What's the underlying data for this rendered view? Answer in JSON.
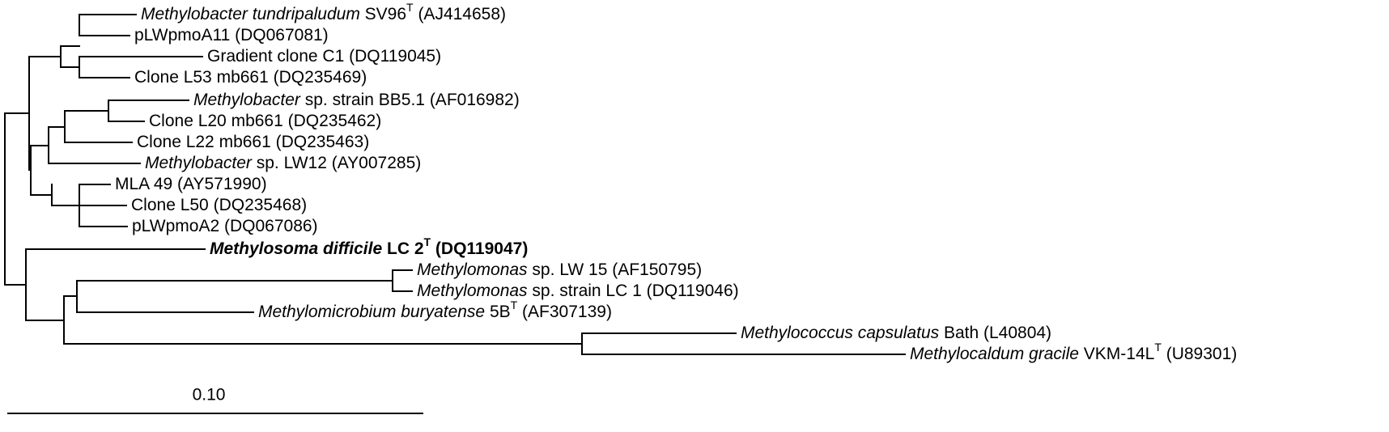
{
  "tree": {
    "leaves": [
      {
        "id": "t1",
        "parts": [
          {
            "t": "Methylobacter tundripaludum",
            "s": "i"
          },
          {
            "t": " SV96"
          },
          {
            "t": "T",
            "s": "sup"
          },
          {
            "t": " (AJ414658)"
          }
        ]
      },
      {
        "id": "t2",
        "parts": [
          {
            "t": "pLWpmoA11 (DQ067081)"
          }
        ]
      },
      {
        "id": "t3",
        "parts": [
          {
            "t": "Gradient clone C1 (DQ119045)"
          }
        ]
      },
      {
        "id": "t4",
        "parts": [
          {
            "t": "Clone L53 mb661 (DQ235469)"
          }
        ]
      },
      {
        "id": "t5",
        "parts": [
          {
            "t": "Methylobacter",
            "s": "i"
          },
          {
            "t": " sp. strain BB5.1 (AF016982)"
          }
        ]
      },
      {
        "id": "t6",
        "parts": [
          {
            "t": "Clone L20 mb661 (DQ235462)"
          }
        ]
      },
      {
        "id": "t7",
        "parts": [
          {
            "t": "Clone L22 mb661 (DQ235463)"
          }
        ]
      },
      {
        "id": "t8",
        "parts": [
          {
            "t": "Methylobacter",
            "s": "i"
          },
          {
            "t": " sp. LW12 (AY007285)"
          }
        ]
      },
      {
        "id": "t9",
        "parts": [
          {
            "t": "MLA 49  (AY571990)"
          }
        ]
      },
      {
        "id": "t10",
        "parts": [
          {
            "t": "Clone L50 (DQ235468)"
          }
        ]
      },
      {
        "id": "t11",
        "parts": [
          {
            "t": "pLWpmoA2 (DQ067086)"
          }
        ]
      },
      {
        "id": "t12",
        "parts": [
          {
            "t": "Methylosoma difficile",
            "s": "bi"
          },
          {
            "t": "  LC 2",
            "s": "b"
          },
          {
            "t": "T",
            "s": "bsup"
          },
          {
            "t": " (DQ119047)",
            "s": "b"
          }
        ]
      },
      {
        "id": "t13",
        "parts": [
          {
            "t": "Methylomonas",
            "s": "i"
          },
          {
            "t": " sp. LW 15 (AF150795)"
          }
        ]
      },
      {
        "id": "t14",
        "parts": [
          {
            "t": "Methylomonas",
            "s": "i"
          },
          {
            "t": " sp. strain LC 1 (DQ119046)"
          }
        ]
      },
      {
        "id": "t15",
        "parts": [
          {
            "t": "Methylomicrobium buryatense",
            "s": "i"
          },
          {
            "t": " 5B"
          },
          {
            "t": "T",
            "s": "sup"
          },
          {
            "t": " (AF307139)"
          }
        ]
      },
      {
        "id": "t16",
        "parts": [
          {
            "t": "Methylococcus capsulatus",
            "s": "i"
          },
          {
            "t": " Bath (L40804)"
          }
        ]
      },
      {
        "id": "t17",
        "parts": [
          {
            "t": "Methylocaldum gracile",
            "s": "i"
          },
          {
            "t": " VKM-14L"
          },
          {
            "t": "T",
            "s": "sup"
          },
          {
            "t": " (U89301)"
          }
        ]
      }
    ],
    "scale_bar": {
      "label": "0.10"
    }
  }
}
